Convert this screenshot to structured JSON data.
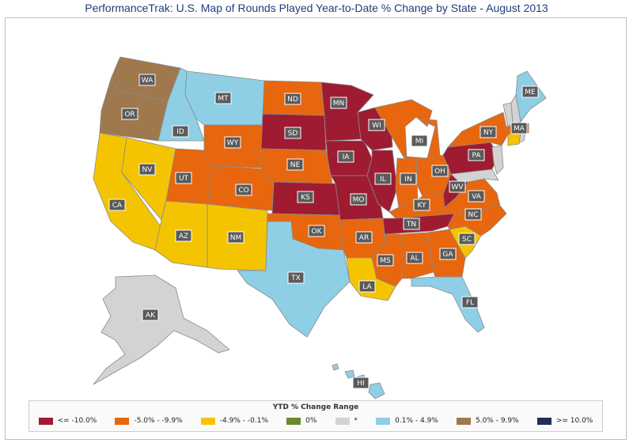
{
  "title": "PerformanceTrak: U.S. Map of Rounds Played Year-to-Date % Change by State - August 2013",
  "colors": {
    "le_m10": "#9e1b32",
    "m5_m9": "#e8660d",
    "m49_m01": "#f5c400",
    "zero": "#6b8a2f",
    "na": "#d3d3d3",
    "p01_p49": "#8ecfe6",
    "p5_p99": "#a0784e",
    "ge_p10": "#1f2d5a"
  },
  "legend": {
    "title": "YTD % Change Range",
    "items": [
      {
        "key": "le_m10",
        "label": "<= -10.0%"
      },
      {
        "key": "m5_m9",
        "label": "-5.0% - -9.9%"
      },
      {
        "key": "m49_m01",
        "label": "-4.9% - -0.1%"
      },
      {
        "key": "zero",
        "label": "0%"
      },
      {
        "key": "na",
        "label": "*"
      },
      {
        "key": "p01_p49",
        "label": "0.1% - 4.9%"
      },
      {
        "key": "p5_p99",
        "label": "5.0% - 9.9%"
      },
      {
        "key": "ge_p10",
        "label": ">= 10.0%"
      }
    ]
  },
  "states": {
    "WA": "p5_p99",
    "OR": "p5_p99",
    "ID": "p01_p49",
    "MT": "p01_p49",
    "CA": "m49_m01",
    "NV": "m49_m01",
    "AZ": "m49_m01",
    "NM": "m49_m01",
    "UT": "m5_m9",
    "WY": "m5_m9",
    "CO": "m5_m9",
    "ND": "m5_m9",
    "NE": "m5_m9",
    "SD": "le_m10",
    "KS": "le_m10",
    "MN": "le_m10",
    "IA": "le_m10",
    "MO": "le_m10",
    "WI": "le_m10",
    "IL": "le_m10",
    "TN": "le_m10",
    "PA": "le_m10",
    "WV": "le_m10",
    "OK": "m5_m9",
    "AR": "m5_m9",
    "MS": "m5_m9",
    "AL": "m5_m9",
    "GA": "m5_m9",
    "IN": "m5_m9",
    "OH": "m5_m9",
    "KY": "m5_m9",
    "MI": "m5_m9",
    "NC": "m5_m9",
    "VA": "m5_m9",
    "NY": "m5_m9",
    "MA": "m5_m9",
    "TX": "p01_p49",
    "FL": "p01_p49",
    "ME": "p01_p49",
    "HI": "p01_p49",
    "LA": "m49_m01",
    "SC": "m49_m01",
    "CT": "m49_m01",
    "AK": "na"
  }
}
